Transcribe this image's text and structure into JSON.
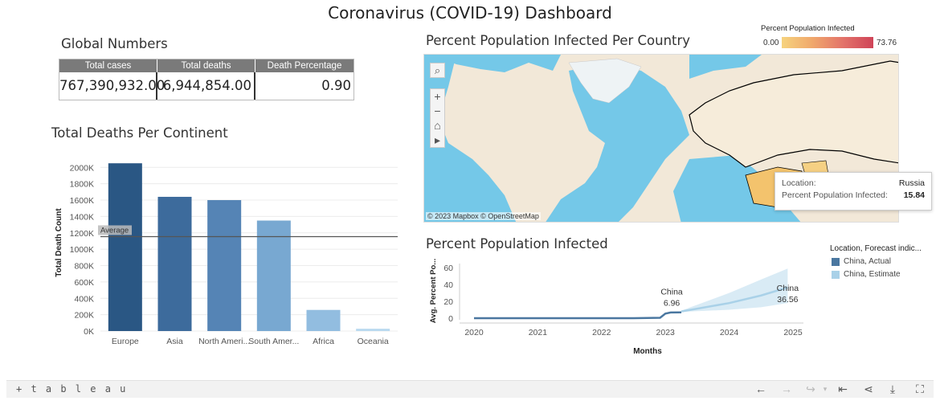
{
  "dashboard": {
    "title": "Coronavirus (COVID-19) Dashboard"
  },
  "global_numbers": {
    "title": "Global Numbers",
    "headers": [
      "Total cases",
      "Total deaths",
      "Death Percentage"
    ],
    "values": [
      "767,390,932.00",
      "6,944,854.00",
      "0.90"
    ]
  },
  "deaths_per_continent": {
    "title": "Total Deaths Per Continent",
    "ylabel": "Total Death Count",
    "reference_label": "Average"
  },
  "map": {
    "title": "Percent Population Infected Per Country",
    "credit": "© 2023 Mapbox  © OpenStreetMap",
    "legend_title": "Percent Population Infected",
    "legend_min": "0.00",
    "legend_max": "73.76",
    "tooltip": {
      "location_label": "Location:",
      "location_value": "Russia",
      "metric_label": "Percent Population Infected:",
      "metric_value": "15.84"
    },
    "tools": [
      "search-icon",
      "zoom-in-icon",
      "zoom-out-icon",
      "home-icon",
      "expand-arrow-icon"
    ],
    "colors": {
      "ocean": "#74c8e8",
      "land": "#f2e8d8",
      "highlight": "#f3c36d"
    }
  },
  "infected_chart": {
    "title": "Percent Population Infected",
    "ylabel": "Avg. Percent Po...",
    "xlabel": "Months",
    "legend_title": "Location, Forecast indic...",
    "legend": [
      {
        "name": "China, Actual",
        "color": "#4a77a0"
      },
      {
        "name": "China, Estimate",
        "color": "#a9d1e8"
      }
    ],
    "annotations": [
      {
        "label": "China",
        "value": "6.96"
      },
      {
        "label": "China",
        "value": "36.56"
      }
    ]
  },
  "footer": {
    "logo": "+ t a b l e a u",
    "tools": [
      "undo-icon",
      "redo-icon",
      "revert-icon",
      "reset-icon",
      "share-icon",
      "download-icon",
      "fullscreen-icon"
    ]
  },
  "chart_data": [
    {
      "type": "bar",
      "title": "Total Deaths Per Continent",
      "ylabel": "Total Death Count",
      "categories": [
        "Europe",
        "Asia",
        "North Ameri...",
        "South Amer...",
        "Africa",
        "Oceania"
      ],
      "values": [
        2050000,
        1640000,
        1600000,
        1350000,
        258000,
        28000
      ],
      "colors": [
        "#2a5784",
        "#3d6b9c",
        "#5584b5",
        "#78a8d1",
        "#92bde0",
        "#b9d9ef"
      ],
      "yticks": [
        "0K",
        "200K",
        "400K",
        "600K",
        "800K",
        "1000K",
        "1200K",
        "1400K",
        "1600K",
        "1800K",
        "2000K"
      ],
      "ylim": [
        0,
        2000000
      ],
      "reference_line": {
        "label": "Average",
        "value": 1154000
      }
    },
    {
      "type": "line",
      "title": "Percent Population Infected",
      "xlabel": "Months",
      "ylabel": "Avg. Percent Po...",
      "x_ticks": [
        "2020",
        "2021",
        "2022",
        "2023",
        "2024",
        "2025"
      ],
      "yticks": [
        "0",
        "20",
        "40",
        "60"
      ],
      "ylim": [
        0,
        60
      ],
      "series": [
        {
          "name": "China, Actual",
          "points": [
            [
              "2020-01",
              0.0
            ],
            [
              "2020-07",
              0.01
            ],
            [
              "2021-01",
              0.01
            ],
            [
              "2021-07",
              0.01
            ],
            [
              "2022-01",
              0.02
            ],
            [
              "2022-07",
              0.05
            ],
            [
              "2022-12",
              0.5
            ],
            [
              "2023-01",
              5.5
            ],
            [
              "2023-02",
              6.8
            ],
            [
              "2023-04",
              6.96
            ]
          ]
        },
        {
          "name": "China, Estimate",
          "points": [
            [
              "2023-04",
              8.0
            ],
            [
              "2024-01",
              18.0
            ],
            [
              "2024-07",
              27.0
            ],
            [
              "2024-12",
              36.56
            ]
          ],
          "band_upper": [
            [
              "2023-04",
              9.0
            ],
            [
              "2024-01",
              30.0
            ],
            [
              "2024-07",
              46.0
            ],
            [
              "2024-12",
              59.0
            ]
          ],
          "band_lower": [
            [
              "2023-04",
              7.5
            ],
            [
              "2024-01",
              10.0
            ],
            [
              "2024-07",
              13.0
            ],
            [
              "2024-12",
              18.0
            ]
          ]
        }
      ]
    }
  ]
}
